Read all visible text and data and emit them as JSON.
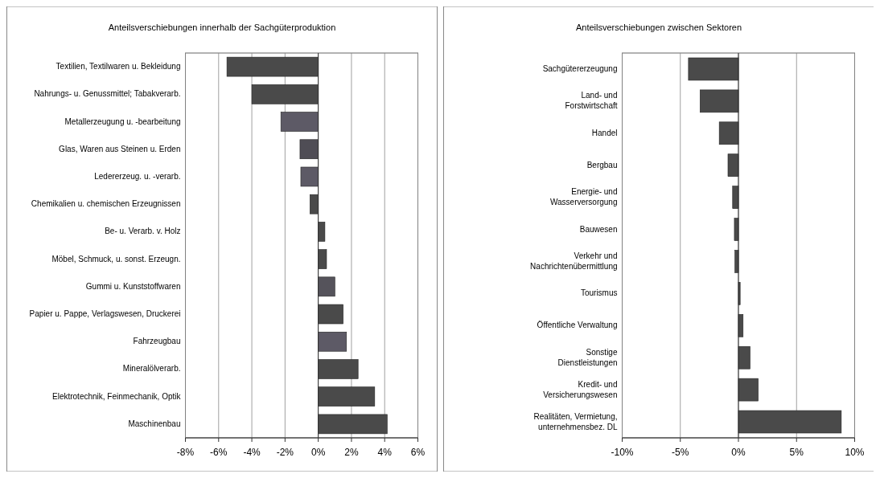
{
  "chart_data": [
    {
      "type": "bar",
      "orientation": "horizontal",
      "title": "Anteilsverschiebungen innerhalb der Sachgüterproduktion",
      "categories": [
        "Textilien, Textilwaren u. Bekleidung",
        "Nahrungs- u. Genussmittel; Tabakverarb.",
        "Metallerzeugung u. -bearbeitung",
        "Glas, Waren aus Steinen u. Erden",
        "Ledererzeug. u. -verarb.",
        "Chemikalien u. chemischen Erzeugnissen",
        "Be- u. Verarb. v. Holz",
        "Möbel, Schmuck, u. sonst. Erzeugn.",
        "Gummi u. Kunststoffwaren",
        "Papier u. Pappe, Verlagswesen, Druckerei",
        "Fahrzeugbau",
        "Mineralölverarb.",
        "Elektrotechnik, Feinmechanik, Optik",
        "Maschinenbau"
      ],
      "values": [
        -5.5,
        -4.0,
        -2.25,
        -1.1,
        -1.05,
        -0.5,
        0.4,
        0.5,
        1.0,
        1.5,
        1.7,
        2.4,
        3.4,
        4.15
      ],
      "colors": [
        "#4a4a4a",
        "#4a4a4a",
        "#5d5a66",
        "#4f4d55",
        "#5d5a66",
        "#4a4a4a",
        "#4a4a4a",
        "#4a4a4a",
        "#55535b",
        "#4a4a4a",
        "#5d5a66",
        "#4a4a4a",
        "#4a4a4a",
        "#4a4a4a"
      ],
      "xlim": [
        -8,
        6
      ],
      "xticks": [
        {
          "value": -8,
          "label": "-8%"
        },
        {
          "value": -6,
          "label": "-6%"
        },
        {
          "value": -4,
          "label": "-4%"
        },
        {
          "value": -2,
          "label": "-2%"
        },
        {
          "value": 0,
          "label": "0%"
        },
        {
          "value": 2,
          "label": "2%"
        },
        {
          "value": 4,
          "label": "4%"
        },
        {
          "value": 6,
          "label": "6%"
        }
      ],
      "grid": "x"
    },
    {
      "type": "bar",
      "orientation": "horizontal",
      "title": "Anteilsverschiebungen zwischen Sektoren",
      "categories": [
        "Sachgütererzeugung",
        "Land- und\nForstwirtschaft",
        "Handel",
        "Bergbau",
        "Energie- und\nWasserversorgung",
        "Bauwesen",
        "Verkehr und\nNachrichtenübermittlung",
        "Tourismus",
        "Öffentliche Verwaltung",
        "Sonstige\nDienstleistungen",
        "Kredit- und\nVersicherungswesen",
        "Realitäten, Vermietung,\nunternehmensbez. DL"
      ],
      "values": [
        -4.3,
        -3.3,
        -1.65,
        -0.9,
        -0.5,
        -0.35,
        -0.3,
        0.15,
        0.4,
        1.0,
        1.7,
        8.85
      ],
      "colors": [
        "#4a4a4a",
        "#4a4a4a",
        "#4a4a4a",
        "#4a4a4a",
        "#4a4a4a",
        "#4a4a4a",
        "#4a4a4a",
        "#4a4a4a",
        "#4a4a4a",
        "#4a4a4a",
        "#4a4a4a",
        "#4a4a4a"
      ],
      "xlim": [
        -10,
        10
      ],
      "xticks": [
        {
          "value": -10,
          "label": "-10%"
        },
        {
          "value": -5,
          "label": "-5%"
        },
        {
          "value": 0,
          "label": "0%"
        },
        {
          "value": 5,
          "label": "5%"
        },
        {
          "value": 10,
          "label": "10%"
        }
      ],
      "grid": "x"
    }
  ]
}
